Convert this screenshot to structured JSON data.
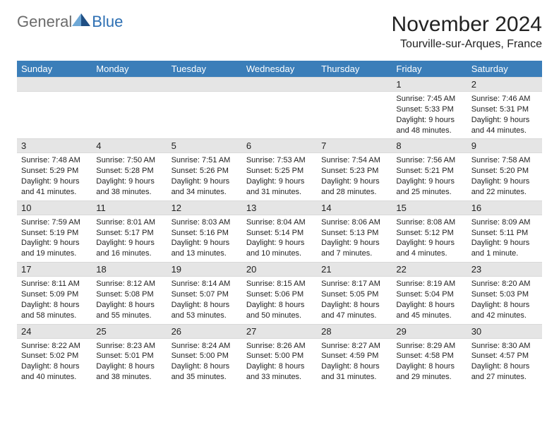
{
  "logo": {
    "general": "General",
    "blue": "Blue"
  },
  "title": "November 2024",
  "subtitle": "Tourville-sur-Arques, France",
  "colors": {
    "header_bg": "#3b7eb9",
    "header_text": "#ffffff",
    "date_bar_bg": "#e5e5e5",
    "logo_gray": "#6b6b6b",
    "logo_blue": "#2d6fb3",
    "tri_light": "#6fa8d6",
    "tri_dark": "#1f4f84"
  },
  "days_of_week": [
    "Sunday",
    "Monday",
    "Tuesday",
    "Wednesday",
    "Thursday",
    "Friday",
    "Saturday"
  ],
  "labels": {
    "sunrise": "Sunrise:",
    "sunset": "Sunset:",
    "daylight": "Daylight:"
  },
  "weeks": [
    [
      null,
      null,
      null,
      null,
      null,
      {
        "date": "1",
        "sunrise": "7:45 AM",
        "sunset": "5:33 PM",
        "daylight": "9 hours and 48 minutes."
      },
      {
        "date": "2",
        "sunrise": "7:46 AM",
        "sunset": "5:31 PM",
        "daylight": "9 hours and 44 minutes."
      }
    ],
    [
      {
        "date": "3",
        "sunrise": "7:48 AM",
        "sunset": "5:29 PM",
        "daylight": "9 hours and 41 minutes."
      },
      {
        "date": "4",
        "sunrise": "7:50 AM",
        "sunset": "5:28 PM",
        "daylight": "9 hours and 38 minutes."
      },
      {
        "date": "5",
        "sunrise": "7:51 AM",
        "sunset": "5:26 PM",
        "daylight": "9 hours and 34 minutes."
      },
      {
        "date": "6",
        "sunrise": "7:53 AM",
        "sunset": "5:25 PM",
        "daylight": "9 hours and 31 minutes."
      },
      {
        "date": "7",
        "sunrise": "7:54 AM",
        "sunset": "5:23 PM",
        "daylight": "9 hours and 28 minutes."
      },
      {
        "date": "8",
        "sunrise": "7:56 AM",
        "sunset": "5:21 PM",
        "daylight": "9 hours and 25 minutes."
      },
      {
        "date": "9",
        "sunrise": "7:58 AM",
        "sunset": "5:20 PM",
        "daylight": "9 hours and 22 minutes."
      }
    ],
    [
      {
        "date": "10",
        "sunrise": "7:59 AM",
        "sunset": "5:19 PM",
        "daylight": "9 hours and 19 minutes."
      },
      {
        "date": "11",
        "sunrise": "8:01 AM",
        "sunset": "5:17 PM",
        "daylight": "9 hours and 16 minutes."
      },
      {
        "date": "12",
        "sunrise": "8:03 AM",
        "sunset": "5:16 PM",
        "daylight": "9 hours and 13 minutes."
      },
      {
        "date": "13",
        "sunrise": "8:04 AM",
        "sunset": "5:14 PM",
        "daylight": "9 hours and 10 minutes."
      },
      {
        "date": "14",
        "sunrise": "8:06 AM",
        "sunset": "5:13 PM",
        "daylight": "9 hours and 7 minutes."
      },
      {
        "date": "15",
        "sunrise": "8:08 AM",
        "sunset": "5:12 PM",
        "daylight": "9 hours and 4 minutes."
      },
      {
        "date": "16",
        "sunrise": "8:09 AM",
        "sunset": "5:11 PM",
        "daylight": "9 hours and 1 minute."
      }
    ],
    [
      {
        "date": "17",
        "sunrise": "8:11 AM",
        "sunset": "5:09 PM",
        "daylight": "8 hours and 58 minutes."
      },
      {
        "date": "18",
        "sunrise": "8:12 AM",
        "sunset": "5:08 PM",
        "daylight": "8 hours and 55 minutes."
      },
      {
        "date": "19",
        "sunrise": "8:14 AM",
        "sunset": "5:07 PM",
        "daylight": "8 hours and 53 minutes."
      },
      {
        "date": "20",
        "sunrise": "8:15 AM",
        "sunset": "5:06 PM",
        "daylight": "8 hours and 50 minutes."
      },
      {
        "date": "21",
        "sunrise": "8:17 AM",
        "sunset": "5:05 PM",
        "daylight": "8 hours and 47 minutes."
      },
      {
        "date": "22",
        "sunrise": "8:19 AM",
        "sunset": "5:04 PM",
        "daylight": "8 hours and 45 minutes."
      },
      {
        "date": "23",
        "sunrise": "8:20 AM",
        "sunset": "5:03 PM",
        "daylight": "8 hours and 42 minutes."
      }
    ],
    [
      {
        "date": "24",
        "sunrise": "8:22 AM",
        "sunset": "5:02 PM",
        "daylight": "8 hours and 40 minutes."
      },
      {
        "date": "25",
        "sunrise": "8:23 AM",
        "sunset": "5:01 PM",
        "daylight": "8 hours and 38 minutes."
      },
      {
        "date": "26",
        "sunrise": "8:24 AM",
        "sunset": "5:00 PM",
        "daylight": "8 hours and 35 minutes."
      },
      {
        "date": "27",
        "sunrise": "8:26 AM",
        "sunset": "5:00 PM",
        "daylight": "8 hours and 33 minutes."
      },
      {
        "date": "28",
        "sunrise": "8:27 AM",
        "sunset": "4:59 PM",
        "daylight": "8 hours and 31 minutes."
      },
      {
        "date": "29",
        "sunrise": "8:29 AM",
        "sunset": "4:58 PM",
        "daylight": "8 hours and 29 minutes."
      },
      {
        "date": "30",
        "sunrise": "8:30 AM",
        "sunset": "4:57 PM",
        "daylight": "8 hours and 27 minutes."
      }
    ]
  ]
}
